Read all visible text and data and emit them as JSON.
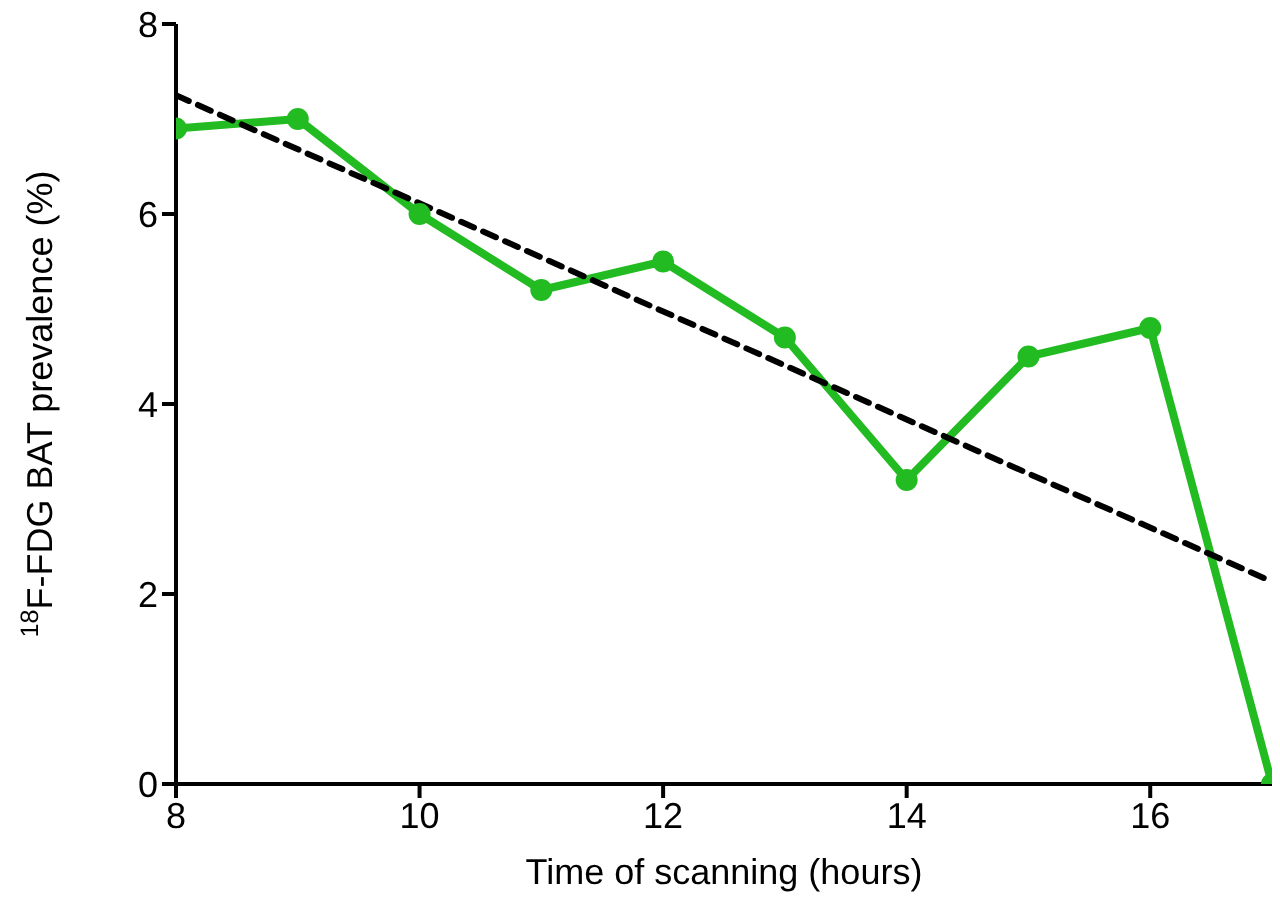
{
  "chart_data": {
    "type": "line",
    "xlabel": "Time of scanning (hours)",
    "ylabel": "$^{18}$F-FDG BAT prevalence (%)",
    "x": [
      8,
      9,
      10,
      11,
      12,
      13,
      14,
      15,
      16,
      17
    ],
    "series": [
      {
        "color": "#22bb22",
        "values": [
          6.9,
          7.0,
          6.0,
          5.2,
          5.5,
          4.7,
          3.2,
          4.5,
          4.8,
          0
        ],
        "marker": "circle",
        "line_style": "solid"
      },
      {
        "type": "line",
        "color": "#000000",
        "x": [
          8,
          17
        ],
        "values": [
          7.25,
          2.13
        ],
        "marker": "none",
        "line_style": "dashed"
      }
    ],
    "xlim": [
      8,
      17
    ],
    "xticks": [
      8,
      10,
      12,
      14,
      16
    ],
    "ylim": [
      0,
      8
    ],
    "yticks": [
      0,
      2,
      4,
      6,
      8
    ],
    "grid": false,
    "legend": false
  }
}
